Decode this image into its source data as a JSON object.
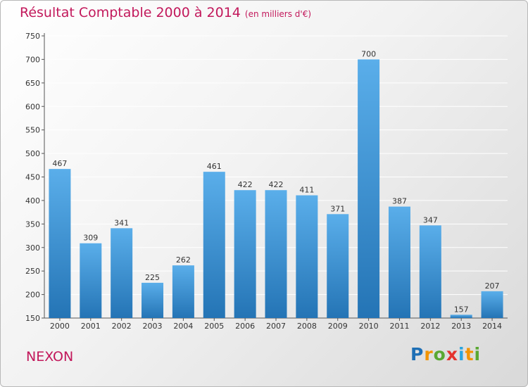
{
  "header": {
    "title": "Résultat Comptable 2000 à 2014",
    "subtitle": "(en milliers d'€)"
  },
  "footer": {
    "commune": "NEXON",
    "logo_text": "Proxiti"
  },
  "colors": {
    "title": "#c2185b",
    "bar_light": "#5aaeea",
    "bar_dark": "#2474b5",
    "grid": "#ffffff",
    "logo": [
      "#1e6fb5",
      "#f29400",
      "#5aa832",
      "#e4332d",
      "#2aa5de",
      "#f29400",
      "#5aa832"
    ]
  },
  "chart_data": {
    "type": "bar",
    "title": "Résultat Comptable 2000 à 2014",
    "subtitle": "(en milliers d'€)",
    "categories": [
      "2000",
      "2001",
      "2002",
      "2003",
      "2004",
      "2005",
      "2006",
      "2007",
      "2008",
      "2009",
      "2010",
      "2011",
      "2012",
      "2013",
      "2014"
    ],
    "values": [
      467,
      309,
      341,
      225,
      262,
      461,
      422,
      422,
      411,
      371,
      700,
      387,
      347,
      157,
      207
    ],
    "ylim": [
      150,
      750
    ],
    "yticks": [
      150,
      200,
      250,
      300,
      350,
      400,
      450,
      500,
      550,
      600,
      650,
      700,
      750
    ],
    "xlabel": "",
    "ylabel": "",
    "grid": true,
    "data_labels": true
  }
}
